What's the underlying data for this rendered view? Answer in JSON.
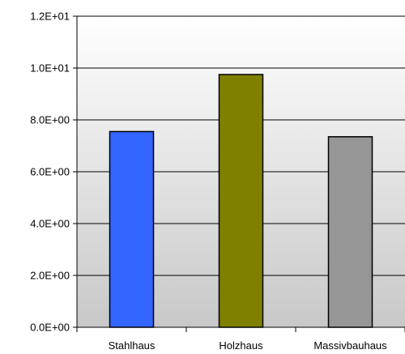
{
  "chart_data": {
    "type": "bar",
    "categories": [
      "Stahlhaus",
      "Holzhaus",
      "Massivbauhaus"
    ],
    "values": [
      7.55,
      9.75,
      7.35
    ],
    "ylim": [
      0,
      12
    ],
    "yticks": [
      0,
      2,
      4,
      6,
      8,
      10,
      12
    ],
    "ytick_labels": [
      "0.0E+00",
      "2.0E+00",
      "4.0E+00",
      "6.0E+00",
      "8.0E+00",
      "1.0E+01",
      "1.2E+01"
    ],
    "bar_colors": [
      "#3366ff",
      "#808000",
      "#969696"
    ],
    "grid": true,
    "legend": "none"
  },
  "colors": {
    "plot_top": "#ffffff",
    "plot_bottom": "#c8c8c8",
    "grid": "#000000",
    "axis": "#000000",
    "bar_outline": "#000000"
  }
}
